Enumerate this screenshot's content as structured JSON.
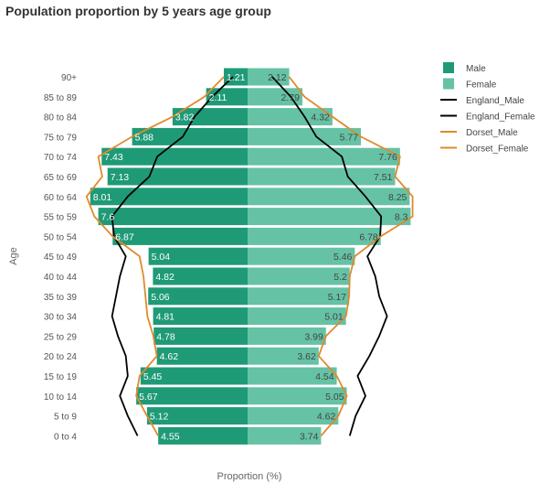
{
  "chart_data": {
    "type": "bar",
    "title": "Population proportion by 5 years age group",
    "xlabel": "Proportion (%)",
    "ylabel": "Age",
    "categories": [
      "90+",
      "85 to 89",
      "80 to 84",
      "75 to 79",
      "70 to 74",
      "65 to 69",
      "60 to 64",
      "55 to 59",
      "50 to 54",
      "45 to 49",
      "40 to 44",
      "35 to 39",
      "30 to 34",
      "25 to 29",
      "20 to 24",
      "15 to 19",
      "10 to 14",
      "5 to 9",
      "0 to 4"
    ],
    "series": [
      {
        "name": "Male",
        "kind": "bar",
        "color": "#1f9a77",
        "values": [
          1.21,
          2.11,
          3.82,
          5.88,
          7.43,
          7.13,
          8.01,
          7.6,
          6.87,
          5.04,
          4.82,
          5.06,
          4.81,
          4.78,
          4.62,
          5.45,
          5.67,
          5.12,
          4.55
        ]
      },
      {
        "name": "Female",
        "kind": "bar",
        "color": "#66c2a5",
        "values": [
          2.12,
          2.79,
          4.32,
          5.77,
          7.76,
          7.51,
          8.25,
          8.3,
          6.78,
          5.46,
          5.2,
          5.17,
          5.01,
          3.99,
          3.62,
          4.54,
          5.05,
          4.62,
          3.74
        ]
      },
      {
        "name": "England_Male",
        "kind": "line",
        "color": "#000000",
        "values": [
          0.75,
          1.8,
          2.7,
          3.3,
          4.6,
          5.0,
          6.1,
          6.9,
          6.8,
          6.2,
          6.5,
          6.7,
          6.9,
          6.6,
          6.2,
          6.1,
          6.5,
          6.1,
          5.6
        ]
      },
      {
        "name": "England_Female",
        "kind": "line",
        "color": "#000000",
        "values": [
          1.25,
          2.2,
          2.9,
          3.5,
          4.8,
          5.1,
          6.0,
          6.8,
          6.75,
          6.1,
          6.5,
          6.7,
          7.1,
          6.7,
          6.2,
          5.6,
          6.0,
          5.5,
          5.2
        ]
      },
      {
        "name": "Dorset_Male",
        "kind": "line",
        "color": "#e08a2c",
        "values": [
          1.21,
          2.2,
          3.82,
          5.88,
          7.6,
          7.4,
          8.2,
          7.8,
          6.87,
          5.5,
          5.3,
          5.2,
          5.1,
          4.8,
          4.62,
          5.5,
          5.67,
          5.12,
          4.55
        ]
      },
      {
        "name": "Dorset_Female",
        "kind": "line",
        "color": "#e08a2c",
        "values": [
          2.12,
          2.9,
          4.32,
          5.77,
          7.76,
          7.51,
          8.4,
          8.4,
          6.78,
          5.46,
          5.2,
          5.17,
          5.01,
          3.99,
          3.62,
          4.54,
          5.05,
          4.62,
          3.74
        ]
      }
    ],
    "legend_position": "right",
    "grid": false
  }
}
